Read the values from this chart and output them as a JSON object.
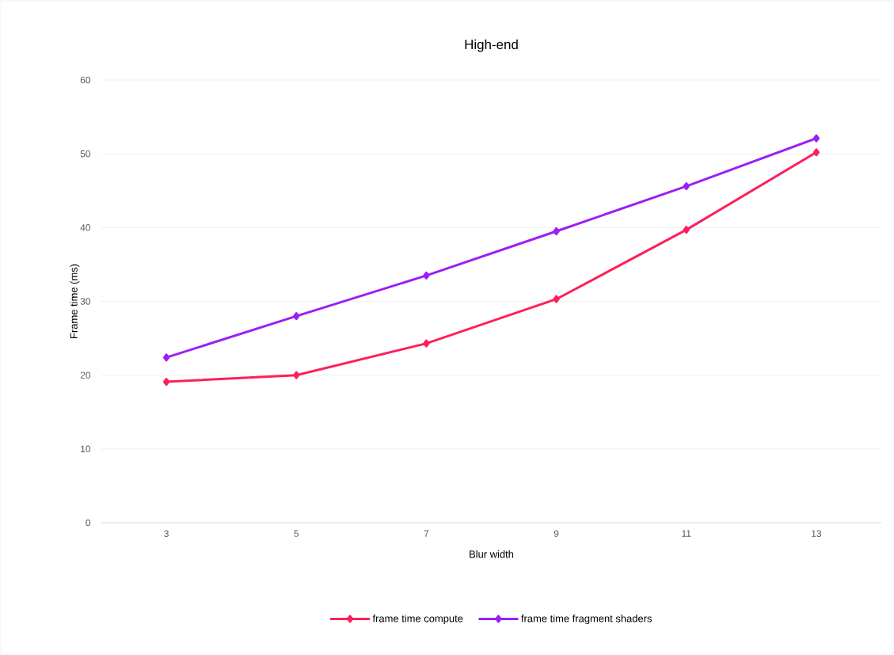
{
  "chart_data": {
    "type": "line",
    "title": "High-end",
    "xlabel": "Blur width",
    "ylabel": "Frame time (ms)",
    "categories": [
      "3",
      "5",
      "7",
      "9",
      "11",
      "13"
    ],
    "series": [
      {
        "name": "frame time compute",
        "color": "#ff1f5a",
        "values": [
          19.1,
          20.0,
          24.3,
          30.3,
          39.7,
          50.2
        ]
      },
      {
        "name": "frame time fragment shaders",
        "color": "#9a1ff5",
        "values": [
          22.4,
          28.0,
          33.5,
          39.5,
          45.6,
          52.1
        ]
      }
    ],
    "ylim": [
      0,
      60
    ],
    "yticks": [
      0,
      10,
      20,
      30,
      40,
      50,
      60
    ],
    "grid": "y",
    "legend": "bottom",
    "marker": "diamond",
    "line_style": "solid"
  }
}
